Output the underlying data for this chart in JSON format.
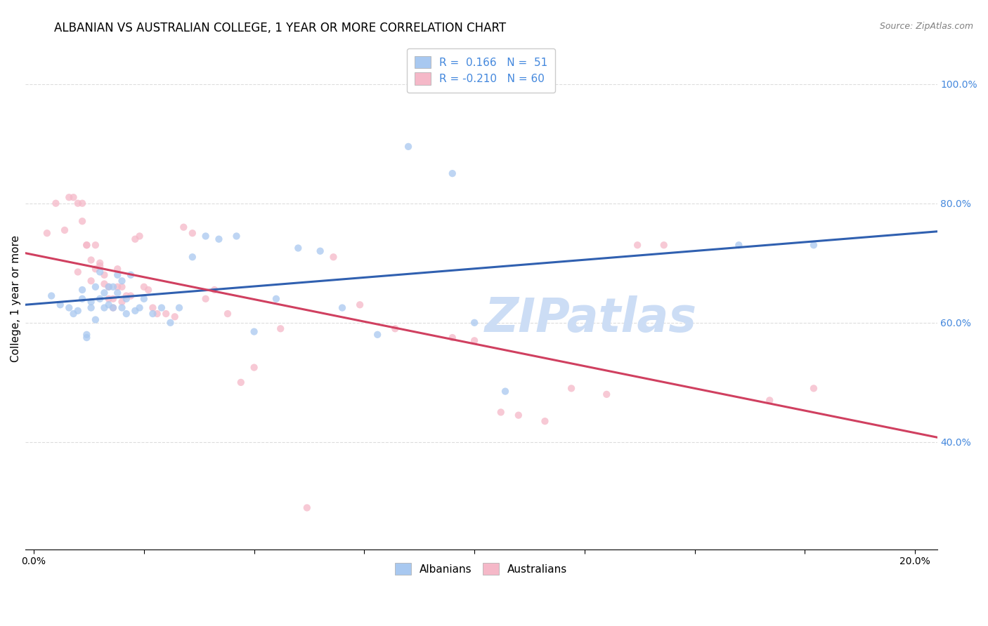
{
  "title": "ALBANIAN VS AUSTRALIAN COLLEGE, 1 YEAR OR MORE CORRELATION CHART",
  "source": "Source: ZipAtlas.com",
  "ylabel": "College, 1 year or more",
  "xlim": [
    -0.002,
    0.205
  ],
  "ylim": [
    0.22,
    1.06
  ],
  "x_major_ticks": [
    0.0,
    0.025,
    0.05,
    0.075,
    0.1,
    0.125,
    0.15,
    0.175,
    0.2
  ],
  "x_label_ticks": [
    0.0,
    0.2
  ],
  "x_label_strs": [
    "0.0%",
    "20.0%"
  ],
  "ylabel_tick_vals": [
    0.4,
    0.6,
    0.8,
    1.0
  ],
  "ylabel_tick_strs": [
    "40.0%",
    "60.0%",
    "80.0%",
    "100.0%"
  ],
  "albanians_x": [
    0.004,
    0.006,
    0.008,
    0.009,
    0.01,
    0.011,
    0.011,
    0.012,
    0.012,
    0.013,
    0.013,
    0.014,
    0.014,
    0.015,
    0.015,
    0.016,
    0.016,
    0.017,
    0.017,
    0.018,
    0.018,
    0.019,
    0.019,
    0.02,
    0.02,
    0.021,
    0.021,
    0.022,
    0.023,
    0.024,
    0.025,
    0.027,
    0.029,
    0.031,
    0.033,
    0.036,
    0.039,
    0.042,
    0.046,
    0.05,
    0.055,
    0.06,
    0.065,
    0.07,
    0.078,
    0.085,
    0.095,
    0.1,
    0.107,
    0.16,
    0.177
  ],
  "albanians_y": [
    0.645,
    0.63,
    0.625,
    0.615,
    0.62,
    0.655,
    0.64,
    0.58,
    0.575,
    0.635,
    0.625,
    0.605,
    0.66,
    0.64,
    0.685,
    0.65,
    0.625,
    0.66,
    0.63,
    0.66,
    0.625,
    0.68,
    0.65,
    0.67,
    0.625,
    0.64,
    0.615,
    0.68,
    0.62,
    0.625,
    0.64,
    0.615,
    0.625,
    0.6,
    0.625,
    0.71,
    0.745,
    0.74,
    0.745,
    0.585,
    0.64,
    0.725,
    0.72,
    0.625,
    0.58,
    0.895,
    0.85,
    0.6,
    0.485,
    0.73,
    0.73
  ],
  "australians_x": [
    0.003,
    0.005,
    0.007,
    0.008,
    0.009,
    0.01,
    0.01,
    0.011,
    0.011,
    0.012,
    0.012,
    0.013,
    0.013,
    0.014,
    0.014,
    0.015,
    0.015,
    0.016,
    0.016,
    0.017,
    0.017,
    0.018,
    0.018,
    0.019,
    0.019,
    0.02,
    0.02,
    0.021,
    0.022,
    0.023,
    0.024,
    0.025,
    0.026,
    0.027,
    0.028,
    0.03,
    0.032,
    0.034,
    0.036,
    0.039,
    0.041,
    0.044,
    0.047,
    0.05,
    0.056,
    0.062,
    0.068,
    0.074,
    0.082,
    0.095,
    0.1,
    0.106,
    0.11,
    0.116,
    0.122,
    0.13,
    0.137,
    0.143,
    0.167,
    0.177
  ],
  "australians_y": [
    0.75,
    0.8,
    0.755,
    0.81,
    0.81,
    0.8,
    0.685,
    0.8,
    0.77,
    0.73,
    0.73,
    0.705,
    0.67,
    0.73,
    0.69,
    0.7,
    0.695,
    0.665,
    0.68,
    0.64,
    0.66,
    0.625,
    0.64,
    0.69,
    0.66,
    0.66,
    0.635,
    0.645,
    0.645,
    0.74,
    0.745,
    0.66,
    0.655,
    0.625,
    0.615,
    0.615,
    0.61,
    0.76,
    0.75,
    0.64,
    0.655,
    0.615,
    0.5,
    0.525,
    0.59,
    0.29,
    0.71,
    0.63,
    0.59,
    0.575,
    0.57,
    0.45,
    0.445,
    0.435,
    0.49,
    0.48,
    0.73,
    0.73,
    0.47,
    0.49
  ],
  "albanian_color": "#a8c8f0",
  "australian_color": "#f5b8c8",
  "albanian_line_color": "#3060b0",
  "australian_line_color": "#d04060",
  "albanian_R": "0.166",
  "albanian_N": "51",
  "australian_R": "-0.210",
  "australian_N": "60",
  "watermark": "ZIPatlas",
  "watermark_color": "#ccddf5",
  "grid_color": "#dddddd",
  "marker_size": 55,
  "marker_alpha": 0.75,
  "line_width": 2.2,
  "title_fontsize": 12,
  "axis_label_fontsize": 11,
  "tick_fontsize": 10,
  "source_fontsize": 9,
  "legend_fontsize": 11,
  "right_ylabel_color": "#4488dd"
}
